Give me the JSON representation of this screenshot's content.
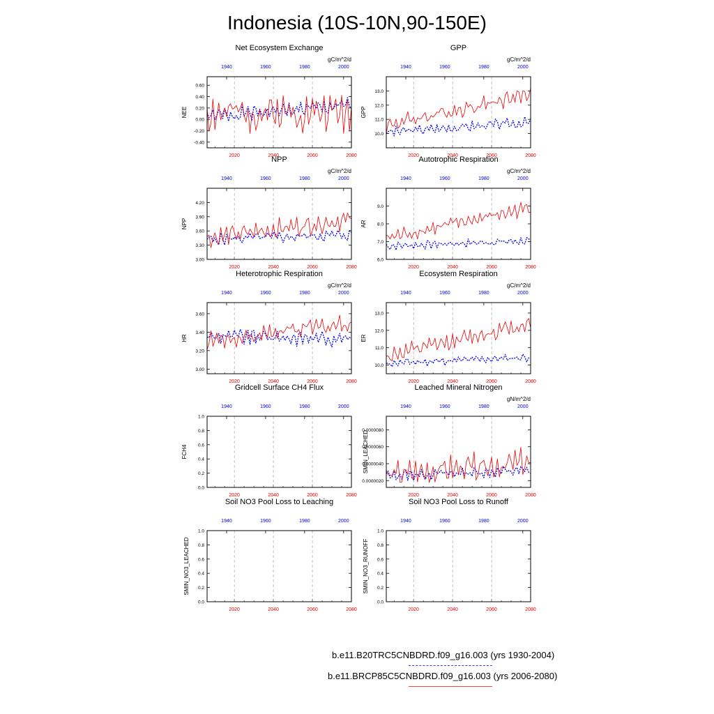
{
  "title": "Indonesia (10S-10N,90-150E)",
  "colors": {
    "historical": "#0000ee",
    "future": "#ee0000",
    "axis": "#000000",
    "grid": "#999999"
  },
  "top_axis_ticks": [
    "1940",
    "1960",
    "1980",
    "2000"
  ],
  "bottom_axis_ticks": [
    "2020",
    "2040",
    "2060",
    "2080"
  ],
  "legend": {
    "historical": "b.e11.B20TRC5CNBDRD.f09_g16.003 (yrs 1930-2004)",
    "future": "b.e11.BRCP85C5CNBDRD.f09_g16.003 (yrs 2006-2080)"
  },
  "chart_data": [
    {
      "type": "line",
      "title": "Net Ecosystem Exchange",
      "ylabel": "NEE",
      "units": "gC/m^2/d",
      "ylim": [
        -0.5,
        0.75
      ],
      "yticks": [
        "-0.40",
        "-0.20",
        "0.00",
        "0.20",
        "0.40",
        "0.60"
      ],
      "ytick_values": [
        -0.4,
        -0.2,
        0.0,
        0.2,
        0.4,
        0.6
      ],
      "historical": {
        "x": [
          1930,
          2004
        ],
        "base": [
          0.05,
          0.25
        ],
        "amp": 0.13,
        "seed": 1
      },
      "future": {
        "x": [
          2006,
          2080
        ],
        "base": [
          0.1,
          0.15
        ],
        "amp": 0.32,
        "seed": 2
      }
    },
    {
      "type": "line",
      "title": "GPP",
      "ylabel": "GPP",
      "units": "gC/m^2/d",
      "ylim": [
        9.0,
        14.0
      ],
      "yticks": [
        "10.0",
        "11.0",
        "12.0",
        "13.0"
      ],
      "ytick_values": [
        10,
        11,
        12,
        13
      ],
      "historical": {
        "x": [
          1930,
          2004
        ],
        "base": [
          10.1,
          10.8
        ],
        "amp": 0.35,
        "seed": 3
      },
      "future": {
        "x": [
          2006,
          2080
        ],
        "base": [
          10.6,
          12.8
        ],
        "amp": 0.55,
        "seed": 4
      }
    },
    {
      "type": "line",
      "title": "NPP",
      "ylabel": "NPP",
      "units": "gC/m^2/d",
      "ylim": [
        3.0,
        4.5
      ],
      "yticks": [
        "3.00",
        "3.30",
        "3.60",
        "3.90",
        "4.20"
      ],
      "ytick_values": [
        3.0,
        3.3,
        3.6,
        3.9,
        4.2
      ],
      "historical": {
        "x": [
          1930,
          2004
        ],
        "base": [
          3.42,
          3.52
        ],
        "amp": 0.12,
        "seed": 5
      },
      "future": {
        "x": [
          2006,
          2080
        ],
        "base": [
          3.45,
          3.85
        ],
        "amp": 0.2,
        "seed": 6
      }
    },
    {
      "type": "line",
      "title": "Autotrophic Respiration",
      "ylabel": "AR",
      "units": "gC/m^2/d",
      "ylim": [
        6.0,
        10.0
      ],
      "yticks": [
        "6.0",
        "7.0",
        "8.0",
        "9.0"
      ],
      "ytick_values": [
        6,
        7,
        8,
        9
      ],
      "historical": {
        "x": [
          1930,
          2004
        ],
        "base": [
          6.75,
          7.05
        ],
        "amp": 0.22,
        "seed": 7
      },
      "future": {
        "x": [
          2006,
          2080
        ],
        "base": [
          7.2,
          8.9
        ],
        "amp": 0.4,
        "seed": 8
      }
    },
    {
      "type": "line",
      "title": "Heterotrophic Respiration",
      "ylabel": "HR",
      "units": "gC/m^2/d",
      "ylim": [
        2.95,
        3.72
      ],
      "yticks": [
        "3.00",
        "3.20",
        "3.40",
        "3.60"
      ],
      "ytick_values": [
        3.0,
        3.2,
        3.4,
        3.6
      ],
      "historical": {
        "x": [
          1930,
          2004
        ],
        "base": [
          3.36,
          3.33
        ],
        "amp": 0.08,
        "seed": 9
      },
      "future": {
        "x": [
          2006,
          2080
        ],
        "base": [
          3.3,
          3.5
        ],
        "amp": 0.1,
        "seed": 10
      }
    },
    {
      "type": "line",
      "title": "Ecosystem Respiration",
      "ylabel": "ER",
      "units": "gC/m^2/d",
      "ylim": [
        9.5,
        13.6
      ],
      "yticks": [
        "10.0",
        "11.0",
        "12.0",
        "13.0"
      ],
      "ytick_values": [
        10,
        11,
        12,
        13
      ],
      "historical": {
        "x": [
          1930,
          2004
        ],
        "base": [
          10.1,
          10.45
        ],
        "amp": 0.22,
        "seed": 11
      },
      "future": {
        "x": [
          2006,
          2080
        ],
        "base": [
          10.5,
          12.4
        ],
        "amp": 0.45,
        "seed": 12
      }
    },
    {
      "type": "line",
      "title": "Gridcell Surface CH4 Flux",
      "ylabel": "FCH4",
      "units": "",
      "ylim": [
        0.0,
        1.0
      ],
      "yticks": [
        "0.0",
        "0.2",
        "0.4",
        "0.6",
        "0.8",
        "1.0"
      ],
      "ytick_values": [
        0,
        0.2,
        0.4,
        0.6,
        0.8,
        1.0
      ],
      "historical": null,
      "future": null
    },
    {
      "type": "line",
      "title": "Leached Mineral Nitrogen",
      "ylabel": "SMIN_LEACHED",
      "units": "gN/m^2/d",
      "ylim": [
        1.2e-06,
        9.6e-06
      ],
      "yticks": [
        "0.0000020",
        "0.0000040",
        "0.0000060",
        "0.0000080"
      ],
      "ytick_values": [
        2e-06,
        4e-06,
        6e-06,
        8e-06
      ],
      "historical": {
        "x": [
          1930,
          2004
        ],
        "base": [
          2.6e-06,
          3.2e-06
        ],
        "amp": 6e-07,
        "seed": 13
      },
      "future": {
        "x": [
          2006,
          2080
        ],
        "base": [
          2.6e-06,
          4.2e-06
        ],
        "amp": 1.5e-06,
        "seed": 14
      }
    },
    {
      "type": "line",
      "title": "Soil NO3 Pool Loss to Leaching",
      "ylabel": "SMIN_NO3_LEACHED",
      "units": "",
      "ylim": [
        0.0,
        1.0
      ],
      "yticks": [
        "0.0",
        "0.2",
        "0.4",
        "0.6",
        "0.8",
        "1.0"
      ],
      "ytick_values": [
        0,
        0.2,
        0.4,
        0.6,
        0.8,
        1.0
      ],
      "historical": null,
      "future": null
    },
    {
      "type": "line",
      "title": "Soil NO3 Pool Loss to Runoff",
      "ylabel": "SMIN_NO3_RUNOFF",
      "units": "",
      "ylim": [
        0.0,
        1.0
      ],
      "yticks": [
        "0.0",
        "0.2",
        "0.4",
        "0.6",
        "0.8",
        "1.0"
      ],
      "ytick_values": [
        0,
        0.2,
        0.4,
        0.6,
        0.8,
        1.0
      ],
      "historical": null,
      "future": null
    }
  ]
}
